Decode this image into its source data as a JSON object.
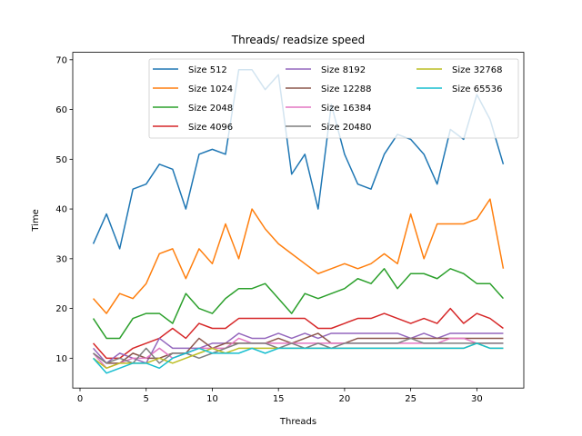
{
  "chart_data": {
    "type": "line",
    "title": "Threads/ readsize speed",
    "xlabel": "Threads",
    "ylabel": "Time",
    "xlim": [
      -0.55,
      33.55
    ],
    "ylim": [
      4.0,
      71.5
    ],
    "xticks": [
      0,
      5,
      10,
      15,
      20,
      25,
      30
    ],
    "yticks": [
      10,
      20,
      30,
      40,
      50,
      60,
      70
    ],
    "grid": false,
    "legend_position": "top-right",
    "legend_columns": 3,
    "x": [
      1,
      2,
      3,
      4,
      5,
      6,
      7,
      8,
      9,
      10,
      11,
      12,
      13,
      14,
      15,
      16,
      17,
      18,
      19,
      20,
      21,
      22,
      23,
      24,
      25,
      26,
      27,
      28,
      29,
      30,
      31,
      32
    ],
    "series": [
      {
        "name": "Size 512",
        "color": "#1f77b4",
        "values": [
          33,
          39,
          32,
          44,
          45,
          49,
          48,
          40,
          51,
          52,
          51,
          68,
          68,
          64,
          67,
          47,
          51,
          40,
          61,
          51,
          45,
          44,
          51,
          55,
          54,
          51,
          45,
          56,
          54,
          63,
          58,
          49
        ]
      },
      {
        "name": "Size 1024",
        "color": "#ff7f0e",
        "values": [
          22,
          19,
          23,
          22,
          25,
          31,
          32,
          26,
          32,
          29,
          37,
          30,
          40,
          36,
          33,
          31,
          29,
          27,
          28,
          29,
          28,
          29,
          31,
          29,
          39,
          30,
          37,
          37,
          37,
          38,
          42,
          28
        ]
      },
      {
        "name": "Size 2048",
        "color": "#2ca02c",
        "values": [
          18,
          14,
          14,
          18,
          19,
          19,
          17,
          23,
          20,
          19,
          22,
          24,
          24,
          25,
          22,
          19,
          23,
          22,
          23,
          24,
          26,
          25,
          28,
          24,
          27,
          27,
          26,
          28,
          27,
          25,
          25,
          22
        ]
      },
      {
        "name": "Size 4096",
        "color": "#d62728",
        "values": [
          13,
          10,
          10,
          12,
          13,
          14,
          16,
          14,
          17,
          16,
          16,
          18,
          18,
          18,
          18,
          18,
          18,
          16,
          16,
          17,
          18,
          18,
          19,
          18,
          17,
          18,
          17,
          20,
          17,
          19,
          18,
          16
        ]
      },
      {
        "name": "Size 8192",
        "color": "#9467bd",
        "values": [
          12,
          9,
          11,
          10,
          9,
          14,
          12,
          12,
          12,
          13,
          13,
          15,
          14,
          14,
          15,
          14,
          15,
          14,
          15,
          15,
          15,
          15,
          15,
          15,
          14,
          15,
          14,
          15,
          15,
          15,
          15,
          15
        ]
      },
      {
        "name": "Size 12288",
        "color": "#8c564b",
        "values": [
          11,
          9,
          9,
          11,
          10,
          10,
          11,
          11,
          14,
          12,
          13,
          13,
          13,
          13,
          14,
          13,
          14,
          15,
          13,
          13,
          14,
          14,
          14,
          14,
          14,
          14,
          14,
          14,
          14,
          14,
          14,
          14
        ]
      },
      {
        "name": "Size 16384",
        "color": "#e377c2",
        "values": [
          11,
          8,
          9,
          10,
          10,
          12,
          10,
          11,
          12,
          12,
          12,
          14,
          13,
          13,
          13,
          13,
          13,
          13,
          13,
          13,
          13,
          13,
          13,
          13,
          13,
          13,
          13,
          14,
          14,
          13,
          13,
          13
        ]
      },
      {
        "name": "Size 20480",
        "color": "#7f7f7f",
        "values": [
          11,
          9,
          10,
          9,
          12,
          9,
          11,
          11,
          10,
          11,
          12,
          13,
          13,
          13,
          12,
          13,
          12,
          13,
          12,
          13,
          13,
          13,
          13,
          13,
          14,
          13,
          13,
          13,
          13,
          13,
          13,
          13
        ]
      },
      {
        "name": "Size 32768",
        "color": "#bcbd22",
        "values": [
          10,
          8,
          9,
          9,
          9,
          10,
          9,
          10,
          11,
          12,
          11,
          12,
          12,
          12,
          12,
          12,
          12,
          12,
          12,
          12,
          12,
          12,
          12,
          12,
          12,
          12,
          12,
          12,
          12,
          13,
          12,
          12
        ]
      },
      {
        "name": "Size 65536",
        "color": "#17becf",
        "values": [
          10,
          7,
          8,
          9,
          9,
          8,
          10,
          11,
          12,
          11,
          11,
          11,
          12,
          11,
          12,
          12,
          12,
          12,
          12,
          12,
          12,
          12,
          12,
          12,
          12,
          12,
          12,
          12,
          12,
          13,
          12,
          12
        ]
      }
    ]
  }
}
